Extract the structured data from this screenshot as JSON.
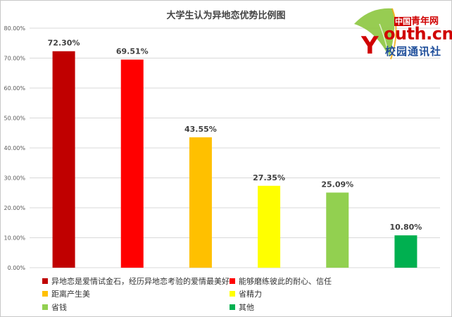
{
  "chart_data": {
    "type": "bar",
    "title": "大学生认为异地恋优势比例图",
    "categories": [
      "异地恋是爱情试金石，经历异地恋考验的爱情最美好",
      "能够磨练彼此的耐心、信任",
      "距离产生美",
      "省精力",
      "省钱",
      "其他"
    ],
    "values": [
      72.3,
      69.51,
      43.55,
      27.35,
      25.09,
      10.8
    ],
    "value_labels": [
      "72.30%",
      "69.51%",
      "43.55%",
      "27.35%",
      "25.09%",
      "10.80%"
    ],
    "colors": [
      "#c00000",
      "#ff0000",
      "#ffc000",
      "#ffff00",
      "#92d050",
      "#00b050"
    ],
    "ylim": [
      0,
      80
    ],
    "yticks": [
      "0.00%",
      "10.00%",
      "20.00%",
      "30.00%",
      "40.00%",
      "50.00%",
      "60.00%",
      "70.00%",
      "80.00%"
    ],
    "xlabel": "",
    "ylabel": "",
    "grid": true,
    "legend_position": "bottom"
  },
  "logo": {
    "cn_prefix": "中国",
    "cn_name": "青年网",
    "en": "outh.cn",
    "sub": "校园通讯社"
  }
}
